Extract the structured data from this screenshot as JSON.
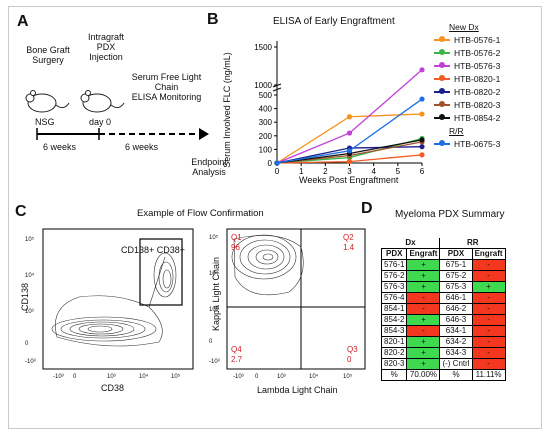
{
  "panels": {
    "a": "A",
    "b": "B",
    "c": "C",
    "d": "D"
  },
  "panel_a": {
    "step1": [
      "Bone Graft",
      "Surgery"
    ],
    "step2": [
      "Intragraft",
      "PDX",
      "Injection"
    ],
    "step3": [
      "Serum Free Light Chain",
      "ELISA Monitoring"
    ],
    "mouse_label": "NSG",
    "day_label": "day 0",
    "interval1": "6 weeks",
    "interval2": "6 weeks",
    "endpoint": [
      "Endpoint",
      "Analysis"
    ]
  },
  "chart_data": [
    {
      "type": "line",
      "title": "ELISA of Early Engraftment",
      "xlabel": "Weeks Post Engraftment",
      "ylabel": "Serum Involved FLC (ng/mL)",
      "x": [
        0,
        3,
        6
      ],
      "xticks": [
        "0",
        "1",
        "2",
        "3",
        "4",
        "5",
        "6"
      ],
      "yticks": [
        "0",
        "100",
        "200",
        "300",
        "400",
        "500",
        "1000",
        "1500"
      ],
      "ylim": [
        0,
        1500
      ],
      "axis_break": [
        500,
        1000
      ],
      "legend_groups": [
        {
          "title": "New Dx",
          "start": 0
        },
        {
          "title": "R/R",
          "start": 7
        }
      ],
      "series": [
        {
          "name": "HTB-0576-1",
          "color": "#f7931e",
          "values": [
            0,
            340,
            360
          ]
        },
        {
          "name": "HTB-0576-2",
          "color": "#39b54a",
          "values": [
            0,
            40,
            180
          ]
        },
        {
          "name": "HTB-0576-3",
          "color": "#c040d8",
          "values": [
            0,
            220,
            1200
          ]
        },
        {
          "name": "HTB-0820-1",
          "color": "#f15a24",
          "values": [
            0,
            10,
            60
          ]
        },
        {
          "name": "HTB-0820-2",
          "color": "#1b1f8f",
          "values": [
            0,
            110,
            120
          ]
        },
        {
          "name": "HTB-0820-3",
          "color": "#a0522d",
          "values": [
            0,
            55,
            155
          ]
        },
        {
          "name": "HTB-0854-2",
          "color": "#111111",
          "values": [
            0,
            70,
            170
          ]
        },
        {
          "name": "HTB-0675-3",
          "color": "#1e6fe0",
          "values": [
            0,
            90,
            470
          ]
        }
      ]
    }
  ],
  "panel_c": {
    "title": "Example of Flow Confirmation",
    "left": {
      "xlabel": "CD38",
      "ylabel": "CD138",
      "gate": "CD138+ CD38+",
      "xticks": [
        "-10³",
        "0",
        "10³",
        "10⁴",
        "10⁵"
      ],
      "yticks": [
        "-10³",
        "0",
        "10³",
        "10⁴",
        "10⁵"
      ]
    },
    "right": {
      "xlabel": "Lambda Light Chain",
      "ylabel": "Kappa Light Chain",
      "xticks": [
        "-10³",
        "0",
        "10³",
        "10⁴",
        "10⁵"
      ],
      "yticks": [
        "-10³",
        "0",
        "10³",
        "10⁴",
        "10⁵"
      ],
      "quadrants": [
        {
          "name": "Q1",
          "value": "96"
        },
        {
          "name": "Q2",
          "value": "1.4"
        },
        {
          "name": "Q4",
          "value": "2.7"
        },
        {
          "name": "Q3",
          "value": "0"
        }
      ]
    }
  },
  "panel_d": {
    "title": "Myeloma PDX Summary",
    "group_dx": "Dx",
    "group_rr": "RR",
    "col_pdx": "PDX",
    "col_engraft": "Engraft",
    "rows": [
      {
        "dx": "576-1",
        "dx_e": "+",
        "rr": "675-1",
        "rr_e": "-"
      },
      {
        "dx": "576-2",
        "dx_e": "+",
        "rr": "675-2",
        "rr_e": "-"
      },
      {
        "dx": "576-3",
        "dx_e": "+",
        "rr": "675-3",
        "rr_e": "+"
      },
      {
        "dx": "576-4",
        "dx_e": "-",
        "rr": "646-1",
        "rr_e": "-"
      },
      {
        "dx": "854-1",
        "dx_e": "-",
        "rr": "646-2",
        "rr_e": "-"
      },
      {
        "dx": "854-2",
        "dx_e": "+",
        "rr": "646-3",
        "rr_e": "-"
      },
      {
        "dx": "854-3",
        "dx_e": "-",
        "rr": "634-1",
        "rr_e": "-"
      },
      {
        "dx": "820-1",
        "dx_e": "+",
        "rr": "634-2",
        "rr_e": "-"
      },
      {
        "dx": "820-2",
        "dx_e": "+",
        "rr": "634-3",
        "rr_e": "-"
      },
      {
        "dx": "820-3",
        "dx_e": "+",
        "rr": "(-) Cntrl",
        "rr_e": "-"
      }
    ],
    "summary": {
      "label": "%",
      "dx_pct": "70.00%",
      "rr_label": "%",
      "rr_pct": "11.11%"
    },
    "colors": {
      "positive": "#3fd94f",
      "negative": "#f3381f"
    }
  }
}
